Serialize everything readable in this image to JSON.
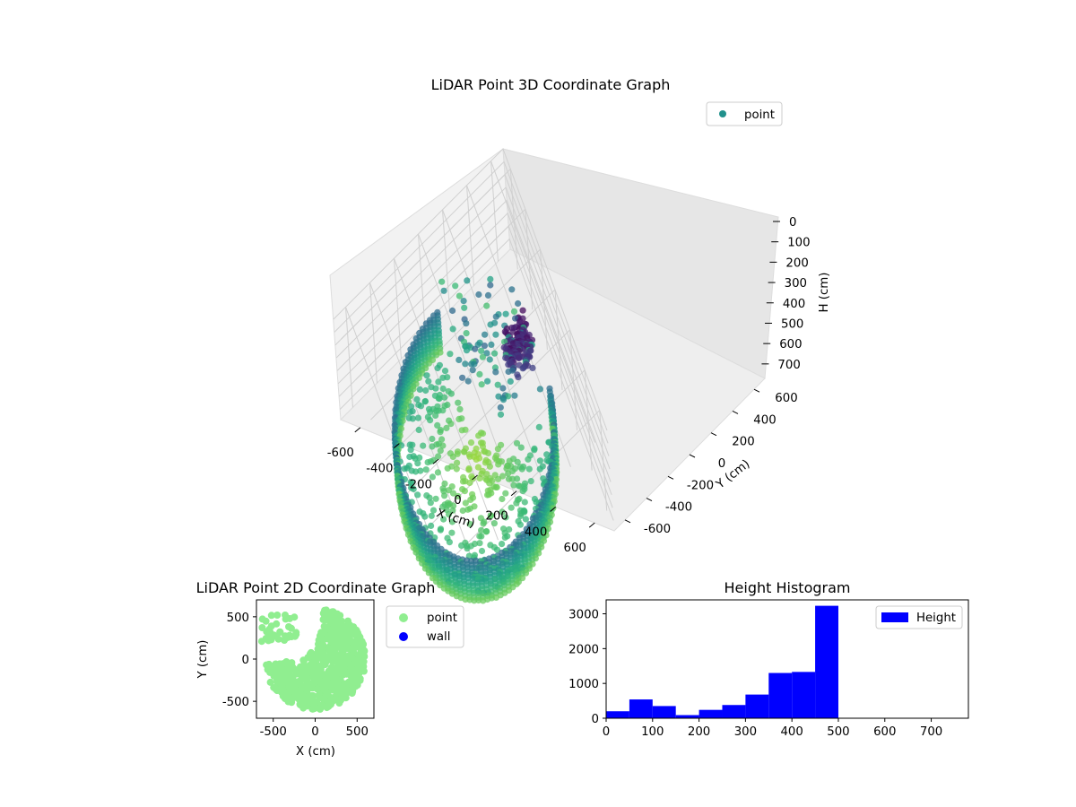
{
  "chart_data": [
    {
      "type": "scatter",
      "title": "LiDAR Point 3D Coordinate Graph",
      "xlabel": "X (cm)",
      "ylabel": "Y (cm)",
      "zlabel": "H (cm)",
      "xlim": [
        -700,
        700
      ],
      "ylim": [
        -700,
        700
      ],
      "zlim": [
        0,
        780
      ],
      "z_inverted": true,
      "x_ticks": [
        "-600",
        "-400",
        "-200",
        "0",
        "200",
        "400",
        "600"
      ],
      "y_ticks": [
        "-600",
        "-400",
        "-200",
        "0",
        "200",
        "400",
        "600"
      ],
      "z_ticks": [
        "0",
        "100",
        "200",
        "300",
        "400",
        "500",
        "600",
        "700"
      ],
      "legend": [
        "point"
      ],
      "colormap": "viridis",
      "wall_radius": 560,
      "wall_height_range": [
        450,
        500
      ],
      "opening_angle_range": [
        80,
        175
      ],
      "wall_color": "#2a9d8f",
      "legend_color": "#21918c"
    },
    {
      "type": "scatter",
      "title": "LiDAR Point 2D Coordinate Graph",
      "xlabel": "X (cm)",
      "ylabel": "Y (cm)",
      "xlim": [
        -700,
        700
      ],
      "ylim": [
        -700,
        700
      ],
      "x_ticks": [
        "-500",
        "0",
        "500"
      ],
      "y_ticks": [
        "500",
        "0",
        "-500"
      ],
      "legend": [
        "point",
        "wall"
      ],
      "point_color": "#90ee90",
      "wall_color": "#0000ff"
    },
    {
      "type": "bar",
      "title": "Height Histogram",
      "xlabel": "",
      "ylabel": "",
      "xlim": [
        0,
        780
      ],
      "ylim": [
        0,
        3400
      ],
      "bin_edges": [
        0,
        50,
        100,
        150,
        200,
        250,
        300,
        350,
        400,
        450,
        500
      ],
      "values": [
        200,
        540,
        350,
        90,
        240,
        380,
        680,
        1300,
        1330,
        3230
      ],
      "x_ticks": [
        "0",
        "100",
        "200",
        "300",
        "400",
        "500",
        "600",
        "700"
      ],
      "y_ticks": [
        "0",
        "1000",
        "2000",
        "3000"
      ],
      "legend": [
        "Height"
      ],
      "bar_color": "#0000ff"
    }
  ]
}
